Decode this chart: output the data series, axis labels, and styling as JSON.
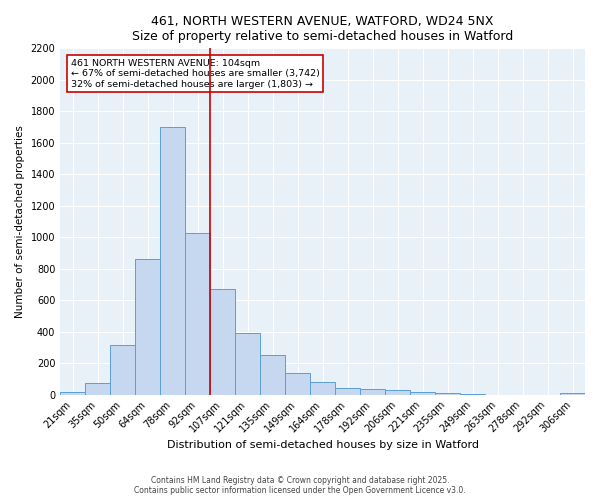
{
  "title1": "461, NORTH WESTERN AVENUE, WATFORD, WD24 5NX",
  "title2": "Size of property relative to semi-detached houses in Watford",
  "xlabel": "Distribution of semi-detached houses by size in Watford",
  "ylabel": "Number of semi-detached properties",
  "categories": [
    "21sqm",
    "35sqm",
    "50sqm",
    "64sqm",
    "78sqm",
    "92sqm",
    "107sqm",
    "121sqm",
    "135sqm",
    "149sqm",
    "164sqm",
    "178sqm",
    "192sqm",
    "206sqm",
    "221sqm",
    "235sqm",
    "249sqm",
    "263sqm",
    "278sqm",
    "292sqm",
    "306sqm"
  ],
  "values": [
    20,
    75,
    315,
    860,
    1700,
    1030,
    670,
    390,
    250,
    140,
    80,
    40,
    35,
    30,
    15,
    10,
    5,
    0,
    0,
    0,
    10
  ],
  "bar_color": "#c5d8f0",
  "bar_edge_color": "#5a9fd4",
  "annotation_text": "461 NORTH WESTERN AVENUE: 104sqm\n← 67% of semi-detached houses are smaller (3,742)\n32% of semi-detached houses are larger (1,803) →",
  "vline_index": 6,
  "box_color": "#cc0000",
  "ylim": [
    0,
    2200
  ],
  "yticks": [
    0,
    200,
    400,
    600,
    800,
    1000,
    1200,
    1400,
    1600,
    1800,
    2000,
    2200
  ],
  "footnote1": "Contains HM Land Registry data © Crown copyright and database right 2025.",
  "footnote2": "Contains public sector information licensed under the Open Government Licence v3.0.",
  "bg_color": "#e8f0f8",
  "fig_bg_color": "#ffffff",
  "title_fontsize": 9,
  "xlabel_fontsize": 8,
  "ylabel_fontsize": 7.5,
  "tick_fontsize": 7,
  "annot_fontsize": 6.8,
  "footnote_fontsize": 5.5
}
